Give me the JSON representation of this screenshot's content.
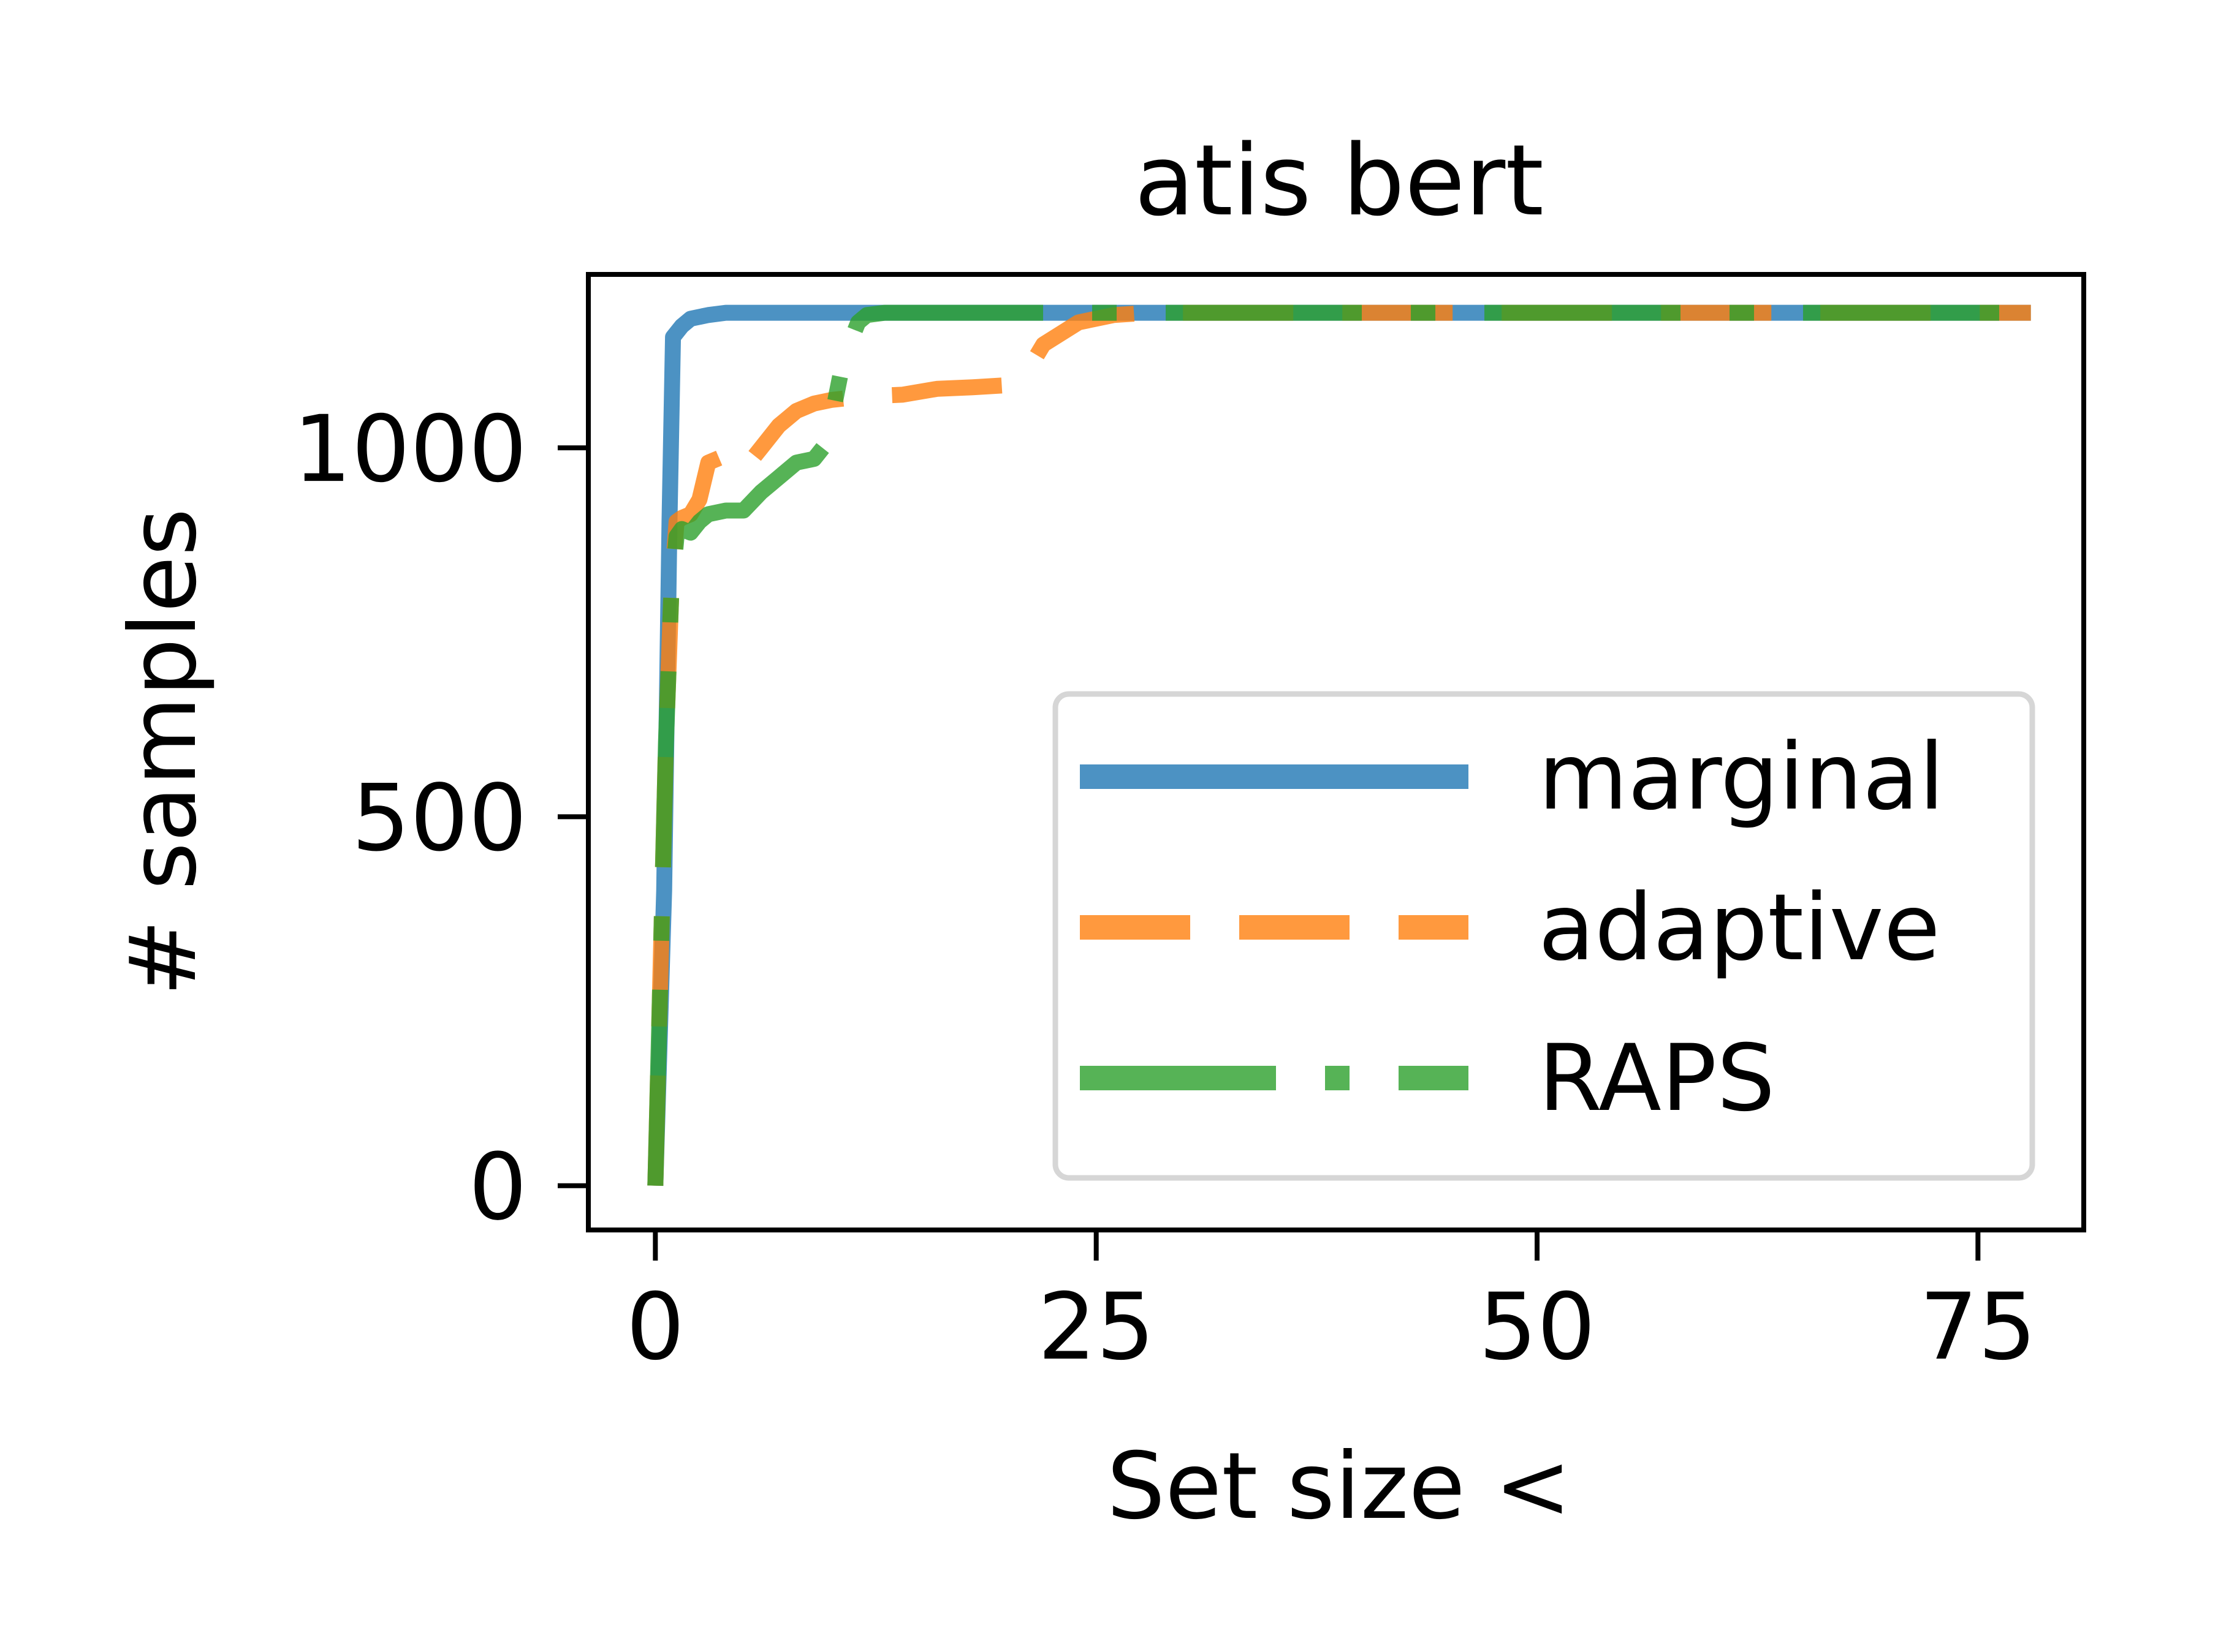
{
  "chart_data": {
    "type": "line",
    "title": "atis bert",
    "xlabel": "Set size <",
    "ylabel": "# samples",
    "xlim": [
      -3.8,
      81
    ],
    "ylim": [
      -60,
      1235
    ],
    "xticks": [
      0,
      25,
      50,
      75
    ],
    "xtick_labels": [
      "0",
      "25",
      "50",
      "75"
    ],
    "yticks": [
      0,
      500,
      1000
    ],
    "ytick_labels": [
      "0",
      "500",
      "1000"
    ],
    "grid": false,
    "legend_position": "lower right",
    "series": [
      {
        "name": "marginal",
        "color": "#1f77b4",
        "style": "solid",
        "x": [
          0,
          0.5,
          0.8,
          1.0,
          1.5,
          2,
          3,
          4,
          5,
          78
        ],
        "y": [
          0,
          400,
          900,
          1150,
          1165,
          1175,
          1180,
          1183,
          1183,
          1183
        ]
      },
      {
        "name": "adaptive",
        "color": "#ff7f0e",
        "style": "dashed",
        "x": [
          0,
          0.3,
          0.6,
          0.9,
          1.2,
          1.5,
          2,
          2.5,
          3,
          3.5,
          4,
          4.5,
          5,
          6,
          7,
          8,
          9,
          10,
          12,
          14,
          16,
          18,
          20,
          21,
          22,
          24,
          26,
          28,
          78
        ],
        "y": [
          0,
          300,
          600,
          800,
          900,
          905,
          910,
          930,
          980,
          985,
          990,
          985,
          970,
          1000,
          1030,
          1050,
          1060,
          1065,
          1070,
          1072,
          1080,
          1082,
          1085,
          1100,
          1140,
          1170,
          1180,
          1183,
          1183
        ]
      },
      {
        "name": "RAPS",
        "color": "#2ca02c",
        "style": "dashdot",
        "x": [
          0,
          0.3,
          0.6,
          0.9,
          1.2,
          1.5,
          2,
          2.5,
          3,
          4,
          5,
          6,
          7,
          8,
          9,
          9.5,
          10,
          10.5,
          11,
          11.5,
          12,
          13,
          78
        ],
        "y": [
          0,
          300,
          600,
          800,
          880,
          890,
          885,
          900,
          910,
          915,
          915,
          940,
          960,
          980,
          985,
          1000,
          1040,
          1100,
          1140,
          1170,
          1180,
          1183,
          1183
        ]
      }
    ]
  }
}
